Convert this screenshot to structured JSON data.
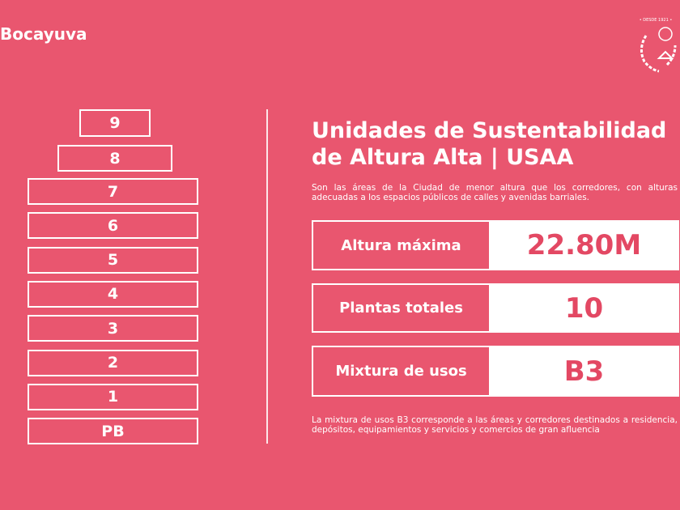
{
  "header": {
    "title": "Bocayuva",
    "logo_text": "• DESDE 1921 •"
  },
  "floors": [
    "9",
    "8",
    "7",
    "6",
    "5",
    "4",
    "3",
    "2",
    "1",
    "PB"
  ],
  "section": {
    "title_lines": [
      "Unidades de Sustentabilidad",
      "de Altura Alta | USAA"
    ],
    "description": "Son las áreas de la Ciudad de menor altura que los corredores, con alturas adecuadas a los espacios públicos de calles y avenidas barriales.",
    "rows": [
      {
        "label": "Altura máxima",
        "value": "22.80M"
      },
      {
        "label": "Plantas totales",
        "value": "10"
      },
      {
        "label": "Mixtura de usos",
        "value": "B3"
      }
    ],
    "note": "La mixtura de usos B3 corresponde a las áreas y corredores destinados a residencia, depósitos, equipamientos y servicios y comercios de gran afluencia"
  }
}
